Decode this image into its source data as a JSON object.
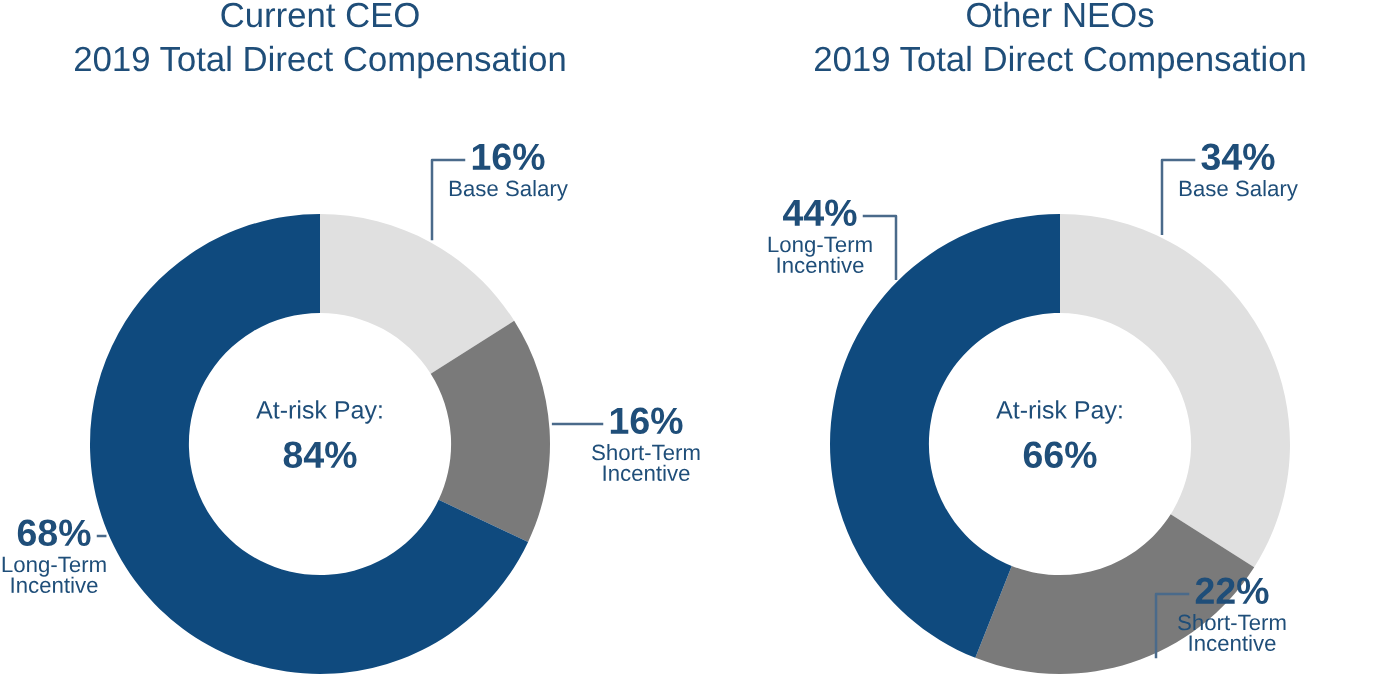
{
  "chart_data": [
    {
      "type": "donut",
      "title": "Current CEO",
      "subtitle": "2019 Total Direct Compensation",
      "categories": [
        "Base Salary",
        "Short-Term\nIncentive",
        "Long-Term\nIncentive"
      ],
      "values": [
        16,
        16,
        68
      ],
      "value_labels": [
        "16%",
        "16%",
        "68%"
      ],
      "colors": [
        "#e0e0e0",
        "#7a7a7a",
        "#0f4a7e"
      ],
      "annotations": [
        "At-risk Pay:",
        "84%"
      ]
    },
    {
      "type": "donut",
      "title": "Other NEOs",
      "subtitle": "2019 Total Direct Compensation",
      "categories": [
        "Base Salary",
        "Short-Term\nIncentive",
        "Long-Term\nIncentive"
      ],
      "values": [
        34,
        22,
        44
      ],
      "value_labels": [
        "34%",
        "22%",
        "44%"
      ],
      "colors": [
        "#e0e0e0",
        "#7a7a7a",
        "#0f4a7e"
      ],
      "annotations": [
        "At-risk Pay:",
        "66%"
      ]
    }
  ]
}
